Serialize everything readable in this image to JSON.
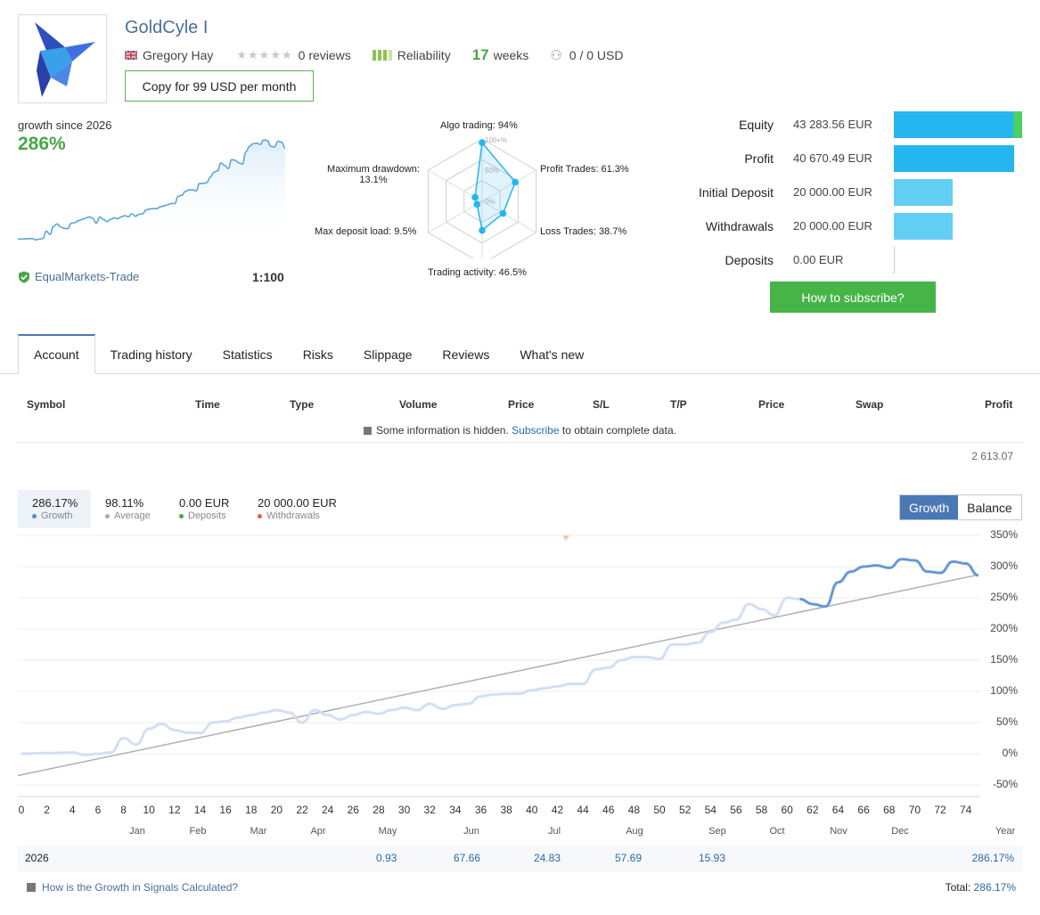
{
  "header": {
    "title": "GoldCyle I",
    "author": "Gregory Hay",
    "reviews": "0 reviews",
    "reliability": "Reliability",
    "weeks_num": "17",
    "weeks_label": "weeks",
    "subscribers": "0 / 0 USD",
    "copy_button": "Copy for 99 USD per month"
  },
  "growth": {
    "since_label": "growth since 2026",
    "value": "286%",
    "broker": "EqualMarkets-Trade",
    "leverage": "1:100"
  },
  "radar": {
    "labels": {
      "algo": "Algo trading: 94%",
      "profit_trades": "Profit Trades: 61.3%",
      "loss_trades": "Loss Trades: 38.7%",
      "activity": "Trading activity: 46.5%",
      "deposit_load": "Max deposit load: 9.5%",
      "drawdown_title": "Maximum drawdown:",
      "drawdown_value": "13.1%"
    },
    "rings": {
      "r100": "100+%",
      "r50": "50%",
      "r0": "0%"
    },
    "values": [
      94,
      61.3,
      38.7,
      46.5,
      9.5,
      13.1
    ]
  },
  "stats": [
    {
      "label": "Equity",
      "value": "43 283.56 EUR",
      "fraction": 1.0,
      "color": "#25b6ef",
      "extra_color": "#4ccf63"
    },
    {
      "label": "Profit",
      "value": "40 670.49 EUR",
      "fraction": 0.94,
      "color": "#25b6ef"
    },
    {
      "label": "Initial Deposit",
      "value": "20 000.00 EUR",
      "fraction": 0.46,
      "color": "#62cef4"
    },
    {
      "label": "Withdrawals",
      "value": "20 000.00 EUR",
      "fraction": 0.46,
      "color": "#62cef4"
    },
    {
      "label": "Deposits",
      "value": "0.00 EUR",
      "fraction": 0,
      "color": "#62cef4"
    }
  ],
  "subscribe_button": "How to subscribe?",
  "tabs": [
    "Account",
    "Trading history",
    "Statistics",
    "Risks",
    "Slippage",
    "Reviews",
    "What's new"
  ],
  "table": {
    "headers": [
      "Symbol",
      "Time",
      "Type",
      "Volume",
      "Price",
      "S/L",
      "T/P",
      "Price",
      "Swap",
      "Profit"
    ],
    "hidden_prefix": "Some information is hidden.",
    "hidden_link": "Subscribe",
    "hidden_suffix": "to obtain complete data.",
    "total": "2 613.07"
  },
  "summary": [
    {
      "value": "286.17%",
      "label": "Growth",
      "color": "#4a90d9"
    },
    {
      "value": "98.11%",
      "label": "Average",
      "color": "#aaaaaa"
    },
    {
      "value": "0.00 EUR",
      "label": "Deposits",
      "color": "#47a647"
    },
    {
      "value": "20 000.00 EUR",
      "label": "Withdrawals",
      "color": "#e0643c"
    }
  ],
  "toggle": {
    "growth": "Growth",
    "balance": "Balance"
  },
  "chart_data": {
    "type": "line",
    "y_ticks": [
      "350%",
      "300%",
      "250%",
      "200%",
      "150%",
      "100%",
      "50%",
      "0%",
      "-50%"
    ],
    "ylim": [
      -50,
      350
    ],
    "x_ticks": [
      "0",
      "2",
      "4",
      "6",
      "8",
      "10",
      "12",
      "14",
      "16",
      "18",
      "20",
      "22",
      "24",
      "26",
      "28",
      "30",
      "32",
      "34",
      "36",
      "38",
      "40",
      "42",
      "44",
      "46",
      "48",
      "50",
      "52",
      "54",
      "56",
      "58",
      "60",
      "62",
      "64",
      "66",
      "68",
      "70",
      "72",
      "74"
    ],
    "xlim": [
      0,
      75
    ],
    "months": [
      "Jan",
      "Feb",
      "Mar",
      "Apr",
      "May",
      "Jun",
      "Jul",
      "Aug",
      "Sep",
      "Oct",
      "Nov",
      "Dec",
      "Year"
    ],
    "series": [
      {
        "name": "Growth",
        "x": [
          0,
          2,
          4,
          5,
          6,
          7,
          8,
          9,
          10,
          11,
          12,
          13,
          14,
          15,
          16,
          17,
          18,
          19,
          20,
          21,
          22,
          23,
          24,
          25,
          26,
          27,
          28,
          29,
          30,
          31,
          32,
          33,
          34,
          35,
          36,
          37,
          38,
          39,
          40,
          41,
          42,
          43,
          44,
          45,
          46,
          47,
          48,
          49,
          50,
          51,
          52,
          53,
          54,
          55,
          56,
          57,
          58,
          59,
          60,
          61,
          62,
          63,
          64,
          65,
          66,
          67,
          68,
          69,
          70,
          71,
          72,
          73,
          74,
          75
        ],
        "y": [
          0,
          1,
          2,
          -2,
          0,
          2,
          25,
          15,
          40,
          48,
          38,
          34,
          33,
          50,
          52,
          58,
          62,
          66,
          70,
          66,
          50,
          70,
          62,
          55,
          62,
          67,
          64,
          70,
          74,
          70,
          80,
          72,
          78,
          80,
          92,
          95,
          96,
          96,
          102,
          105,
          108,
          112,
          112,
          135,
          138,
          150,
          155,
          155,
          152,
          175,
          175,
          178,
          195,
          210,
          215,
          240,
          232,
          222,
          250,
          248,
          240,
          236,
          275,
          292,
          300,
          302,
          298,
          312,
          310,
          292,
          290,
          308,
          305,
          286
        ]
      }
    ],
    "trend": {
      "name": "Average",
      "x": [
        0,
        75
      ],
      "y": [
        -35,
        287
      ]
    }
  },
  "year_row": {
    "year": "2026",
    "values": [
      {
        "month": "May",
        "value": "0.93"
      },
      {
        "month": "Jun",
        "value": "67.66"
      },
      {
        "month": "Jul",
        "value": "24.83"
      },
      {
        "month": "Aug",
        "value": "57.69"
      },
      {
        "month": "Sep",
        "value": "15.93"
      }
    ],
    "year_total": "286.17%"
  },
  "footer": {
    "link": "How is the Growth in Signals Calculated?",
    "total_label": "Total:",
    "total_value": "286.17%"
  }
}
